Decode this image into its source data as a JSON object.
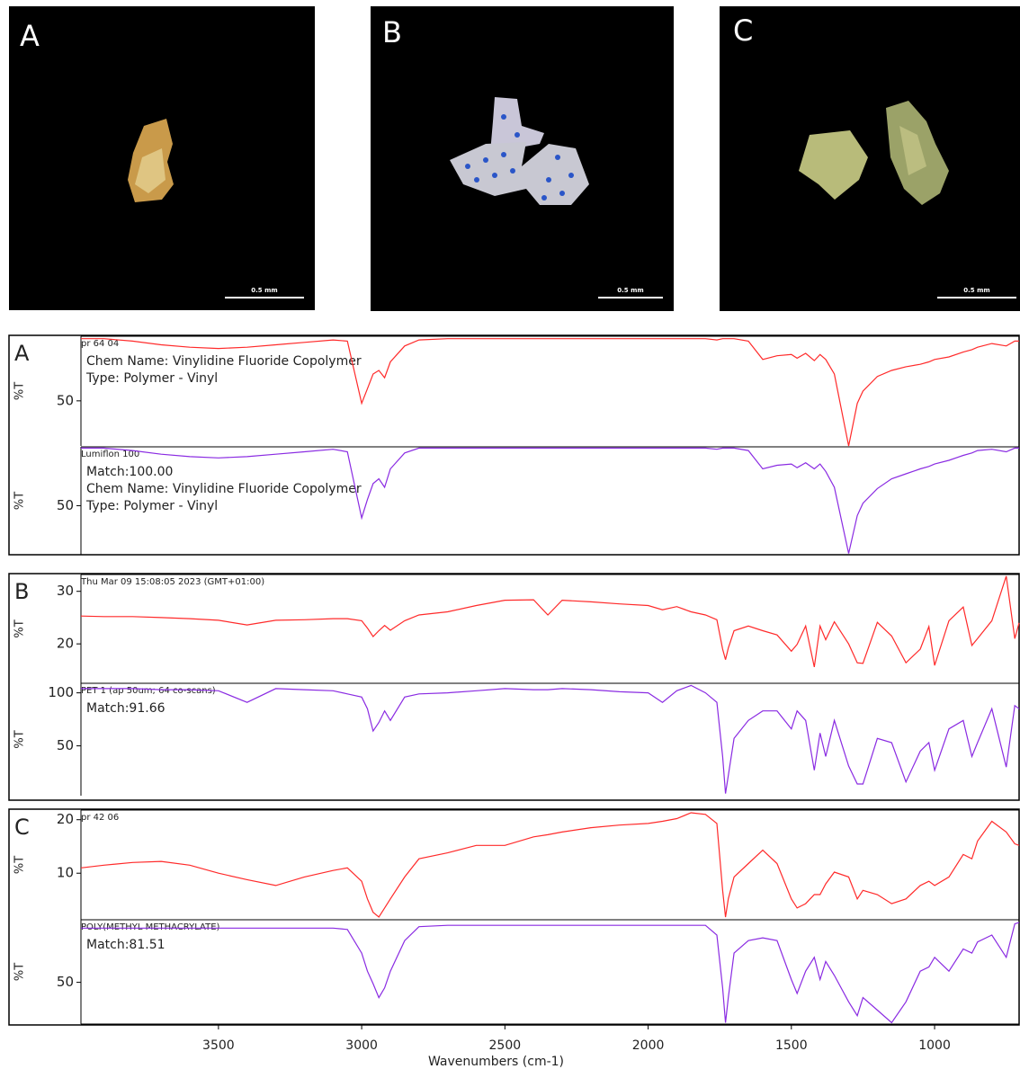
{
  "photos": [
    {
      "label": "A",
      "scale": "0.5 mm"
    },
    {
      "label": "B",
      "scale": "0.5 mm"
    },
    {
      "label": "C",
      "scale": "0.5 mm"
    }
  ],
  "chart_data": [
    {
      "type": "line",
      "panel": "A",
      "title": "pr 64 04",
      "annotations": [
        "Chem Name:  Vinylidine Fluoride Copolymer",
        "Type:  Polymer - Vinyl"
      ],
      "ylabel": "%T",
      "x": [
        3980,
        3900,
        3800,
        3700,
        3600,
        3500,
        3400,
        3300,
        3200,
        3100,
        3050,
        3000,
        2980,
        2960,
        2940,
        2920,
        2900,
        2850,
        2800,
        2700,
        2600,
        2500,
        2400,
        2350,
        2300,
        2200,
        2100,
        2000,
        1950,
        1900,
        1850,
        1800,
        1760,
        1740,
        1730,
        1720,
        1700,
        1650,
        1600,
        1550,
        1500,
        1480,
        1450,
        1420,
        1400,
        1380,
        1350,
        1300,
        1270,
        1250,
        1200,
        1150,
        1100,
        1050,
        1020,
        1000,
        950,
        900,
        870,
        850,
        800,
        750,
        720,
        705
      ],
      "series": [
        {
          "color": "#ff2a2a",
          "values": [
            101,
            101,
            99,
            96,
            94,
            93,
            94,
            96,
            98,
            100,
            99,
            48,
            60,
            72,
            75,
            69,
            82,
            95,
            100,
            101,
            101,
            101,
            101,
            101,
            101,
            101,
            101,
            101,
            101,
            101,
            101,
            101,
            100,
            101,
            101,
            101,
            101,
            99,
            84,
            87,
            88,
            85,
            89,
            83,
            88,
            84,
            72,
            13,
            48,
            58,
            70,
            75,
            78,
            80,
            82,
            84,
            86,
            90,
            92,
            94,
            97,
            95,
            99,
            99
          ]
        }
      ],
      "xlim": [
        3980,
        705
      ],
      "ylim": [
        13,
        103
      ],
      "yticks": [
        50
      ]
    },
    {
      "type": "line",
      "title": "Lumiflon 100",
      "annotations": [
        "Match:100.00",
        "Chem Name:  Vinylidine Fluoride Copolymer",
        "Type:  Polymer - Vinyl"
      ],
      "ylabel": "%T",
      "x": [
        3980,
        3900,
        3800,
        3700,
        3600,
        3500,
        3400,
        3300,
        3200,
        3100,
        3050,
        3000,
        2980,
        2960,
        2940,
        2920,
        2900,
        2850,
        2800,
        2700,
        2600,
        2500,
        2400,
        2350,
        2300,
        2200,
        2100,
        2000,
        1950,
        1900,
        1850,
        1800,
        1760,
        1740,
        1730,
        1720,
        1700,
        1650,
        1600,
        1550,
        1500,
        1480,
        1450,
        1420,
        1400,
        1380,
        1350,
        1300,
        1270,
        1250,
        1200,
        1150,
        1100,
        1050,
        1020,
        1000,
        950,
        900,
        870,
        850,
        800,
        750,
        720,
        705
      ],
      "series": [
        {
          "color": "#8a2be2",
          "values": [
            97,
            97,
            95,
            92,
            90,
            89,
            90,
            92,
            94,
            96,
            94,
            40,
            55,
            68,
            72,
            65,
            80,
            93,
            97,
            97,
            97,
            97,
            97,
            97,
            97,
            97,
            97,
            97,
            97,
            97,
            97,
            97,
            96,
            97,
            97,
            97,
            97,
            95,
            80,
            83,
            84,
            81,
            85,
            80,
            84,
            78,
            65,
            11,
            42,
            52,
            64,
            72,
            76,
            80,
            82,
            84,
            87,
            91,
            93,
            95,
            96,
            94,
            97,
            97
          ]
        }
      ],
      "xlim": [
        3980,
        705
      ],
      "ylim": [
        10,
        98
      ],
      "yticks": [
        50
      ]
    },
    {
      "type": "line",
      "panel": "B",
      "title": "Thu Mar 09 15:08:05 2023 (GMT+01:00)",
      "annotations": [],
      "ylabel": "%T",
      "x": [
        3980,
        3900,
        3800,
        3700,
        3600,
        3500,
        3400,
        3300,
        3200,
        3100,
        3050,
        3000,
        2980,
        2960,
        2940,
        2920,
        2900,
        2850,
        2800,
        2700,
        2600,
        2500,
        2400,
        2350,
        2300,
        2200,
        2100,
        2000,
        1950,
        1900,
        1850,
        1800,
        1760,
        1740,
        1730,
        1720,
        1700,
        1650,
        1600,
        1550,
        1500,
        1480,
        1450,
        1420,
        1400,
        1380,
        1350,
        1300,
        1270,
        1250,
        1200,
        1150,
        1100,
        1050,
        1020,
        1000,
        950,
        900,
        870,
        850,
        800,
        750,
        720,
        705
      ],
      "series": [
        {
          "color": "#ff2a2a",
          "values": [
            25.3,
            25.2,
            25.2,
            25,
            24.8,
            24.5,
            23.6,
            24.5,
            24.6,
            24.8,
            24.8,
            24.4,
            23,
            21.4,
            22.5,
            23.5,
            22.6,
            24.4,
            25.5,
            26.1,
            27.3,
            28.3,
            28.4,
            25.5,
            28.3,
            28,
            27.6,
            27.3,
            26.5,
            27.1,
            26.1,
            25.5,
            24.6,
            19,
            17,
            19.2,
            22.5,
            23.4,
            22.5,
            21.7,
            18.6,
            19.9,
            23.4,
            15.6,
            23.4,
            20.8,
            24.2,
            20,
            16.4,
            16.3,
            24.1,
            21.5,
            16.4,
            19,
            23.3,
            15.9,
            24.4,
            27,
            19.7,
            21,
            24.4,
            32.9,
            21,
            24
          ]
        }
      ],
      "xlim": [
        3980,
        705
      ],
      "ylim": [
        12.5,
        33.2
      ],
      "yticks": [
        20,
        30
      ]
    },
    {
      "type": "line",
      "title": "PET 1 (ap 50um; 64 co-scans)",
      "annotations": [
        "Match:91.66"
      ],
      "ylabel": "%T",
      "x": [
        3980,
        3900,
        3800,
        3700,
        3600,
        3500,
        3400,
        3300,
        3200,
        3100,
        3050,
        3000,
        2980,
        2960,
        2940,
        2920,
        2900,
        2850,
        2800,
        2700,
        2600,
        2500,
        2400,
        2350,
        2300,
        2200,
        2100,
        2000,
        1950,
        1900,
        1850,
        1800,
        1760,
        1740,
        1730,
        1720,
        1700,
        1650,
        1600,
        1550,
        1500,
        1480,
        1450,
        1420,
        1400,
        1380,
        1350,
        1300,
        1270,
        1250,
        1200,
        1150,
        1100,
        1050,
        1020,
        1000,
        950,
        900,
        870,
        850,
        800,
        750,
        720,
        705
      ],
      "series": [
        {
          "color": "#8a2be2",
          "values": [
            104,
            104,
            104,
            103,
            103,
            102,
            91,
            104,
            103,
            102,
            99,
            96,
            85,
            64,
            72,
            83,
            74,
            96,
            99,
            100,
            102,
            104,
            103,
            103,
            104,
            103,
            101,
            100,
            91,
            102,
            107,
            100,
            91,
            40,
            5,
            22,
            57,
            74,
            83,
            83,
            66,
            83,
            74,
            27,
            62,
            40,
            74,
            31,
            14,
            14,
            57,
            53,
            16,
            45,
            53,
            27,
            66,
            74,
            40,
            53,
            85,
            30,
            88,
            85
          ]
        }
      ],
      "xlim": [
        3980,
        705
      ],
      "ylim": [
        3,
        109
      ],
      "yticks": [
        50,
        100
      ]
    },
    {
      "type": "line",
      "panel": "C",
      "title": "pr 42 06",
      "annotations": [],
      "ylabel": "%T",
      "x": [
        3980,
        3900,
        3800,
        3700,
        3600,
        3500,
        3400,
        3300,
        3200,
        3100,
        3050,
        3000,
        2980,
        2960,
        2940,
        2920,
        2900,
        2850,
        2800,
        2700,
        2600,
        2500,
        2400,
        2350,
        2300,
        2200,
        2100,
        2000,
        1950,
        1900,
        1850,
        1800,
        1760,
        1740,
        1730,
        1720,
        1700,
        1650,
        1600,
        1550,
        1500,
        1480,
        1450,
        1420,
        1400,
        1380,
        1350,
        1300,
        1270,
        1250,
        1200,
        1150,
        1100,
        1050,
        1020,
        1000,
        950,
        900,
        870,
        850,
        800,
        750,
        720,
        705
      ],
      "series": [
        {
          "color": "#ff2a2a",
          "values": [
            11,
            11.5,
            12,
            12.2,
            11.5,
            10,
            8.8,
            7.7,
            9.3,
            10.5,
            11,
            8.5,
            5.2,
            2.7,
            1.8,
            3.5,
            5.2,
            9.3,
            12.7,
            13.8,
            15.2,
            15.2,
            16.8,
            17.2,
            17.7,
            18.5,
            19,
            19.3,
            19.7,
            20.2,
            21.3,
            21,
            19.3,
            6.8,
            1.8,
            5.2,
            9.3,
            11.8,
            14.3,
            11.8,
            5.2,
            3.5,
            4.3,
            6,
            6,
            8,
            10.2,
            9.3,
            5.2,
            6.8,
            6,
            4.3,
            5.2,
            7.7,
            8.5,
            7.7,
            9.3,
            13.5,
            12.7,
            16,
            19.7,
            17.7,
            15.5,
            15.2
          ]
        }
      ],
      "xlim": [
        3980,
        705
      ],
      "ylim": [
        1.3,
        21.8
      ],
      "yticks": [
        10,
        20
      ]
    },
    {
      "type": "line",
      "title": "POLY(METHYL METHACRYLATE)",
      "annotations": [
        "Match:81.51"
      ],
      "ylabel": "%T",
      "xlabel": "Wavenumbers (cm-1)",
      "x": [
        3980,
        3900,
        3800,
        3700,
        3600,
        3500,
        3400,
        3300,
        3200,
        3100,
        3050,
        3000,
        2980,
        2960,
        2940,
        2920,
        2900,
        2850,
        2800,
        2700,
        2600,
        2500,
        2400,
        2350,
        2300,
        2200,
        2100,
        2000,
        1950,
        1900,
        1850,
        1800,
        1760,
        1740,
        1730,
        1720,
        1700,
        1650,
        1600,
        1550,
        1500,
        1480,
        1450,
        1420,
        1400,
        1380,
        1350,
        1300,
        1270,
        1250,
        1200,
        1150,
        1100,
        1050,
        1020,
        1000,
        950,
        900,
        870,
        850,
        800,
        750,
        720,
        705
      ],
      "series": [
        {
          "color": "#8a2be2",
          "values": [
            89,
            89,
            89,
            89,
            89,
            89,
            89,
            89,
            89,
            89,
            88,
            71,
            58,
            49,
            39,
            46,
            58,
            80,
            90,
            91,
            91,
            91,
            91,
            91,
            91,
            91,
            91,
            91,
            91,
            91,
            91,
            91,
            84,
            46,
            21,
            39,
            71,
            80,
            82,
            80,
            52,
            42,
            58,
            68,
            52,
            65,
            55,
            36,
            26,
            39,
            30,
            21,
            36,
            58,
            61,
            68,
            58,
            74,
            71,
            79,
            84,
            68,
            92,
            93
          ]
        }
      ],
      "xlim": [
        3980,
        705
      ],
      "ylim": [
        20,
        95
      ],
      "yticks": [
        50
      ],
      "xticks": [
        3500,
        3000,
        2500,
        2000,
        1500,
        1000
      ]
    }
  ]
}
